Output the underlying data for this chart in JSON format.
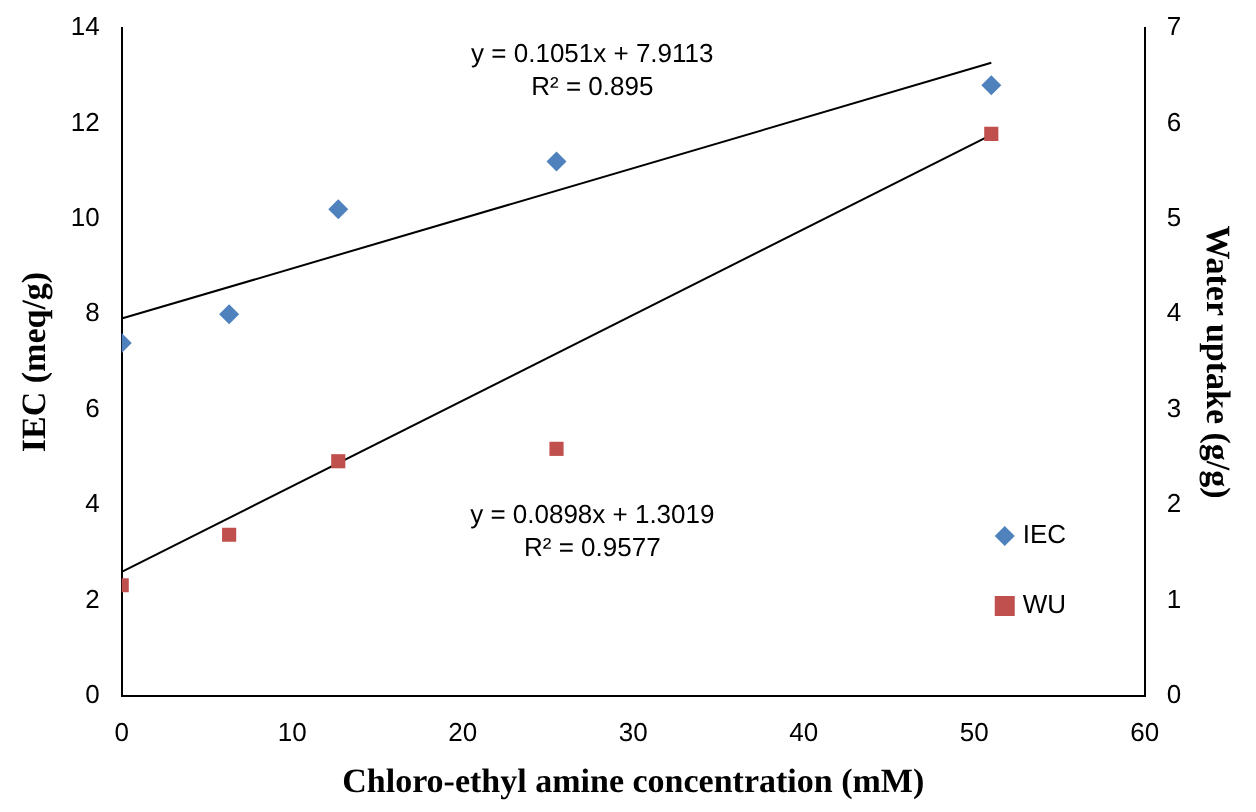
{
  "chart_data": {
    "type": "scatter",
    "xlabel": "Chloro-ethyl amine concentration (mM)",
    "ylabel": "IEC (meq/g)",
    "y2label": "Water uptake (g/g)",
    "series": [
      {
        "name": "IEC",
        "color": "#4f81bd",
        "marker": "diamond",
        "x": [
          0,
          6.3,
          12.7,
          25.5,
          51
        ],
        "values": [
          7.4,
          8.0,
          10.2,
          11.2,
          12.8
        ]
      },
      {
        "name": "WU",
        "color": "#c0504d",
        "marker": "square",
        "axis": "y2",
        "x": [
          0,
          6.3,
          12.7,
          25.5,
          51
        ],
        "values": [
          1.16,
          1.69,
          2.46,
          2.59,
          5.89
        ]
      },
      {
        "type": "line",
        "color": "#000000",
        "marker": "none",
        "x": [
          0,
          51
        ],
        "values": [
          7.91,
          13.27
        ]
      },
      {
        "type": "line",
        "color": "#000000",
        "marker": "none",
        "axis": "y2",
        "x": [
          0,
          51
        ],
        "values": [
          1.3,
          5.88
        ]
      }
    ],
    "xlim": [
      0,
      60
    ],
    "xticks": [
      0,
      10,
      20,
      30,
      40,
      50,
      60
    ],
    "ylim": [
      0,
      14
    ],
    "yticks": [
      0,
      2,
      4,
      6,
      8,
      10,
      12,
      14
    ],
    "y2lim": [
      0,
      7
    ],
    "y2ticks": [
      0,
      1,
      2,
      3,
      4,
      5,
      6,
      7
    ],
    "annotations": [
      "y = 0.1051x + 7.9113",
      "R² = 0.895",
      "y = 0.0898x + 1.3019",
      "R² = 0.9577"
    ],
    "legend": "right",
    "grid": false
  }
}
